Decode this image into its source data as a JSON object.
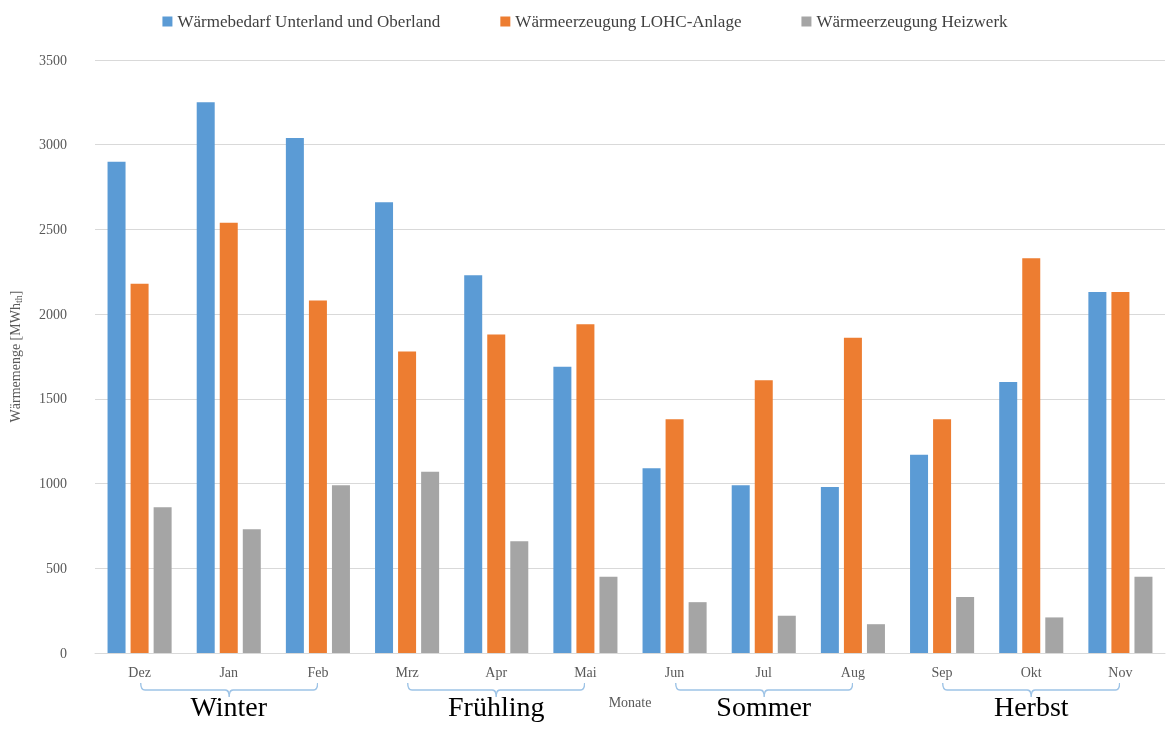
{
  "chart_data": {
    "type": "bar",
    "xlabel": "Monate",
    "ylabel": "Wärmemenge [MWh$_{th}$]",
    "categories": [
      "Dez",
      "Jan",
      "Feb",
      "Mrz",
      "Apr",
      "Mai",
      "Jun",
      "Jul",
      "Aug",
      "Sep",
      "Okt",
      "Nov"
    ],
    "series": [
      {
        "name": "Wärmebedarf Unterland und Oberland",
        "color": "#5b9bd5",
        "values": [
          2900,
          3250,
          3040,
          2660,
          2230,
          1690,
          1090,
          990,
          980,
          1170,
          1600,
          2130
        ]
      },
      {
        "name": "Wärmeerzeugung LOHC-Anlage",
        "color": "#ed7d31",
        "values": [
          2180,
          2540,
          2080,
          1780,
          1880,
          1940,
          1380,
          1610,
          1860,
          1380,
          2330,
          2130
        ]
      },
      {
        "name": "Wärmeerzeugung Heizwerk",
        "color": "#a5a5a5",
        "values": [
          860,
          730,
          990,
          1070,
          660,
          450,
          300,
          220,
          170,
          330,
          210,
          450
        ]
      }
    ],
    "ylim": [
      0,
      3500
    ],
    "yticks": [
      0,
      500,
      1000,
      1500,
      2000,
      2500,
      3000,
      3500
    ],
    "grid": "y",
    "legend": "top",
    "annotations": [
      "Winter",
      "Frühling",
      "Sommer",
      "Herbst"
    ]
  }
}
